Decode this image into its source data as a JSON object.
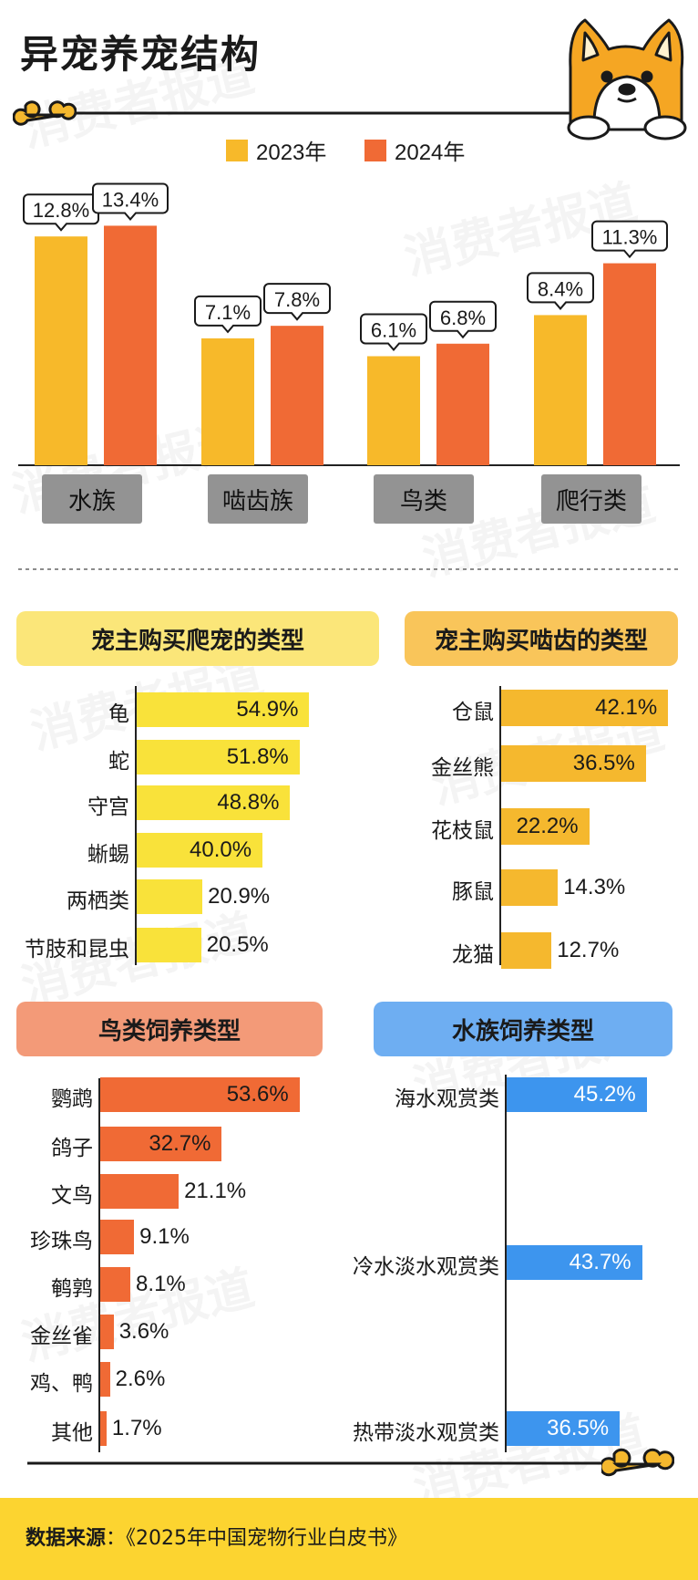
{
  "title": "异宠养宠结构",
  "watermark": "消费者报道",
  "source": {
    "label": "数据来源",
    "separator": "：",
    "value": "《2025年中国宠物行业白皮书》"
  },
  "colors": {
    "y2023": "#f7b92a",
    "y2024": "#f06a35",
    "reptile": "#f9e23a",
    "rodent": "#f5b82e",
    "bird": "#f06a35",
    "aqua": "#3d95ee",
    "reptile_pill": "#fbe679",
    "rodent_pill": "#f9c55a",
    "bird_pill": "#f39a78",
    "aqua_pill": "#6eaef2"
  },
  "icons": [
    "dog-icon",
    "bone-icon"
  ],
  "chart_data": [
    {
      "type": "bar",
      "categories": [
        "水族",
        "啮齿族",
        "鸟类",
        "爬行类"
      ],
      "series": [
        {
          "name": "2023年",
          "values": [
            12.8,
            7.1,
            6.1,
            8.4
          ],
          "labels": [
            "12.8%",
            "7.1%",
            "6.1%",
            "8.4%"
          ]
        },
        {
          "name": "2024年",
          "values": [
            13.4,
            7.8,
            6.8,
            11.3
          ],
          "labels": [
            "13.4%",
            "7.8%",
            "6.8%",
            "11.3%"
          ]
        }
      ],
      "ylim": [
        0,
        16
      ]
    },
    {
      "type": "bar",
      "orientation": "horizontal",
      "title": "宠主购买爬宠的类型",
      "categories": [
        "龟",
        "蛇",
        "守宫",
        "蜥蜴",
        "两栖类",
        "节肢和昆虫"
      ],
      "values": [
        54.9,
        51.8,
        48.8,
        40.0,
        20.9,
        20.5
      ],
      "labels": [
        "54.9%",
        "51.8%",
        "48.8%",
        "40.0%",
        "20.9%",
        "20.5%"
      ]
    },
    {
      "type": "bar",
      "orientation": "horizontal",
      "title": "宠主购买啮齿的类型",
      "categories": [
        "仓鼠",
        "金丝熊",
        "花枝鼠",
        "豚鼠",
        "龙猫"
      ],
      "values": [
        42.1,
        36.5,
        22.2,
        14.3,
        12.7
      ],
      "labels": [
        "42.1%",
        "36.5%",
        "22.2%",
        "14.3%",
        "12.7%"
      ]
    },
    {
      "type": "bar",
      "orientation": "horizontal",
      "title": "鸟类饲养类型",
      "categories": [
        "鹦鹉",
        "鸽子",
        "文鸟",
        "珍珠鸟",
        "鹌鹑",
        "金丝雀",
        "鸡、鸭",
        "其他"
      ],
      "values": [
        53.6,
        32.7,
        21.1,
        9.1,
        8.1,
        3.6,
        2.6,
        1.7
      ],
      "labels": [
        "53.6%",
        "32.7%",
        "21.1%",
        "9.1%",
        "8.1%",
        "3.6%",
        "2.6%",
        "1.7%"
      ]
    },
    {
      "type": "bar",
      "orientation": "horizontal",
      "title": "水族饲养类型",
      "categories": [
        "海水观赏类",
        "冷水淡水观赏类",
        "热带淡水观赏类"
      ],
      "values": [
        45.2,
        43.7,
        36.5
      ],
      "labels": [
        "45.2%",
        "43.7%",
        "36.5%"
      ]
    }
  ]
}
